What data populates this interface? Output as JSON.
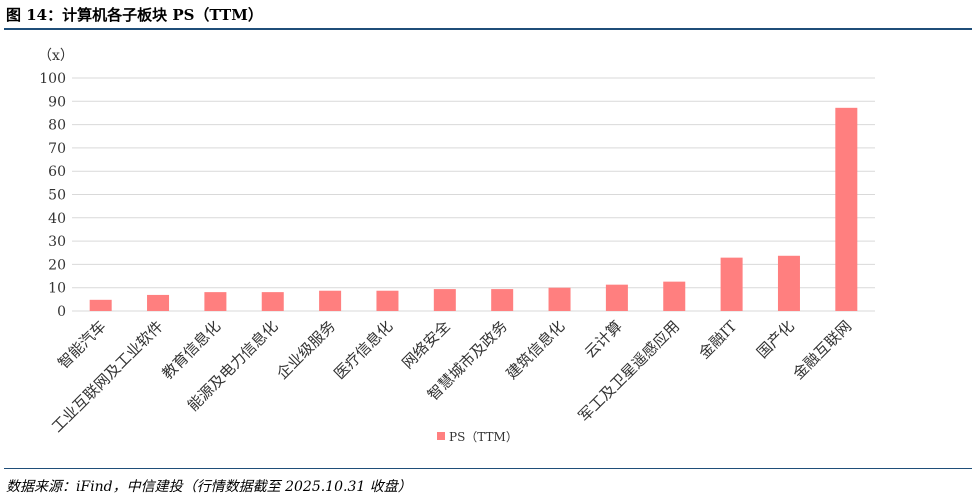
{
  "title": "图 14：计算机各子板块 PS（TTM）",
  "source": "数据来源：iFind，中信建投（行情数据截至 2025.10.31 收盘）",
  "chart_data": {
    "type": "bar",
    "ylabel": "（x）",
    "ylim": [
      0,
      100
    ],
    "yticks": [
      0,
      10,
      20,
      30,
      40,
      50,
      60,
      70,
      80,
      90,
      100
    ],
    "grid": true,
    "legend_placement": "bottom",
    "color": "#ff7f7f",
    "categories": [
      "智能汽车",
      "工业互联网及工业软件",
      "教育信息化",
      "能源及电力信息化",
      "企业级服务",
      "医疗信息化",
      "网络安全",
      "智慧城市及政务",
      "建筑信息化",
      "云计算",
      "军工及卫星遥感应用",
      "金融IT",
      "国产化",
      "金融互联网"
    ],
    "series": [
      {
        "name": "PS（TTM）",
        "values": [
          4.8,
          6.9,
          8.1,
          8.1,
          8.7,
          8.7,
          9.4,
          9.4,
          10.0,
          11.3,
          12.6,
          22.9,
          23.7,
          87.2
        ]
      }
    ]
  }
}
